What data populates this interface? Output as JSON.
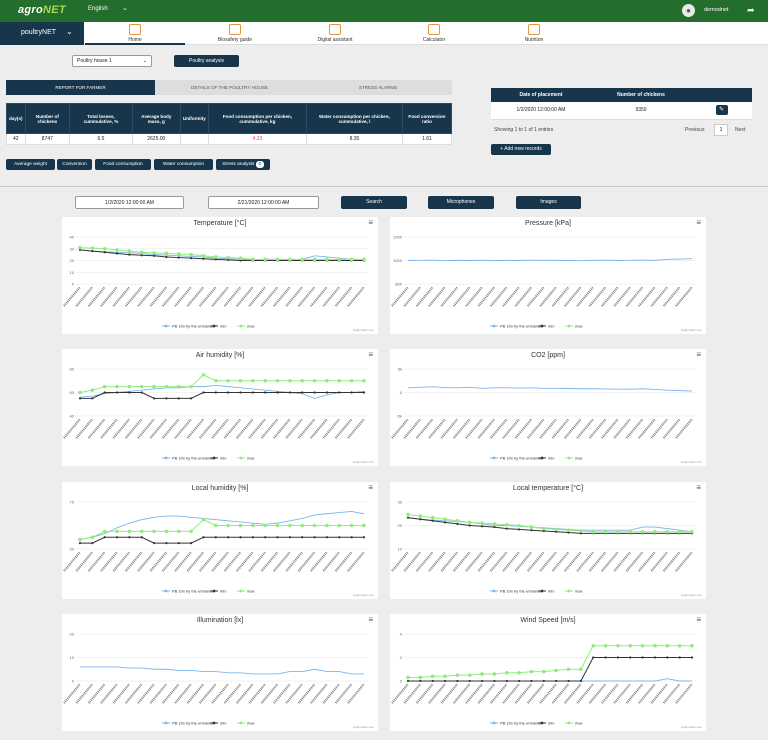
{
  "header": {
    "logo_main": "agro",
    "logo_accent": "NET",
    "language": "English",
    "user": "demodnet"
  },
  "app": {
    "name": "poultryNET"
  },
  "nav": [
    {
      "label": "Home",
      "icon": "home-icon",
      "active": true
    },
    {
      "label": "Biosafety guide",
      "icon": "shield-icon"
    },
    {
      "label": "Digital assistant",
      "icon": "assistant-icon"
    },
    {
      "label": "Calculator",
      "icon": "calculator-icon"
    },
    {
      "label": "Nutrition",
      "icon": "nutrition-icon"
    }
  ],
  "controls": {
    "house": "Poultry house 1",
    "analysis_button": "Poultry analysis"
  },
  "tabs": [
    "REPORT FOR FARMER",
    "DETAILS OF THE POULTRY HOUSE",
    "STRESS ALARMS"
  ],
  "report": {
    "headers": [
      "day(s)",
      "Number of chickens",
      "Total losses, cummulative, %",
      "Average body mass, g",
      "Uniformity",
      "Food consumption per chicken, cummulative, kg",
      "Water consumption per chicken, cummulative, l",
      "Food conversion ratio"
    ],
    "row": [
      "42",
      "8747",
      "6.5",
      "2625.00",
      "",
      "4.23",
      "8.35",
      "1.61"
    ]
  },
  "placement": {
    "headers": [
      "Date of placement",
      "Number of chickens"
    ],
    "row": [
      "1/2/2020 12:00:00 AM",
      "9350"
    ],
    "info": "Showing 1 to 1 of 1 entries",
    "prev": "Previous",
    "page": "1",
    "next": "Next",
    "add": "Add new records"
  },
  "filters": [
    "Average weight",
    "Conversion",
    "Food consumption",
    "Water consumption",
    "Stress analysis"
  ],
  "stress_count": "0",
  "search": {
    "from": "1/2/2020 12:00:00 AM",
    "to": "2/21/2020 12:00:00 AM",
    "search": "Search",
    "microphones": "Microphones",
    "images": "Images"
  },
  "legend": [
    "PB 10x by the entrance",
    "min",
    "max"
  ],
  "credit": "Highcharts.com",
  "colors": {
    "sensor": "#7cb5ec",
    "min": "#333333",
    "max": "#90ed7d"
  },
  "chart_data": [
    {
      "type": "line",
      "title": "Temperature [°C]",
      "ylim": [
        0,
        40
      ],
      "yticks": [
        "40",
        "30",
        "20",
        "10",
        "0"
      ],
      "series": [
        {
          "name": "PB 10x by the entrance",
          "values": [
            29,
            28,
            27.5,
            27,
            26.5,
            26,
            25,
            24.5,
            24,
            23.5,
            23,
            22,
            21.5,
            21,
            20.5,
            21,
            21,
            20.5,
            21,
            24,
            23,
            22,
            21,
            20
          ]
        },
        {
          "name": "min",
          "values": [
            29,
            28,
            27,
            26,
            25,
            24.5,
            24,
            23,
            22.5,
            22,
            21.5,
            21,
            20.5,
            20,
            20,
            20,
            20,
            20,
            20,
            20,
            20,
            20,
            20,
            20
          ]
        },
        {
          "name": "max",
          "values": [
            31,
            30.5,
            30,
            29,
            28,
            27,
            26.5,
            26,
            25.5,
            25,
            24,
            23,
            22.5,
            22,
            21,
            21,
            21,
            21,
            21,
            21,
            21,
            21,
            21,
            21
          ]
        }
      ]
    },
    {
      "type": "line",
      "title": "Pressure [kPa]",
      "ylim": [
        800,
        1200
      ],
      "yticks": [
        "1200",
        "1000",
        "800"
      ],
      "series": [
        {
          "name": "PB 10x by the entrance",
          "values": [
            1000,
            1002,
            1003,
            998,
            1001,
            1000,
            1002,
            999,
            1001,
            1000,
            1003,
            1002,
            1001,
            1000,
            998,
            1001,
            1003,
            1000,
            1002,
            1004,
            1001,
            1010,
            1012,
            1015
          ]
        }
      ]
    },
    {
      "type": "line",
      "title": "Air humidity [%]",
      "ylim": [
        40,
        80
      ],
      "yticks": [
        "80",
        "60",
        "40"
      ],
      "series": [
        {
          "name": "PB 10x by the entrance",
          "values": [
            56,
            57,
            59,
            60,
            61,
            62,
            63,
            64,
            64,
            65,
            65,
            66,
            65,
            64,
            63,
            62,
            61,
            60,
            59,
            55,
            58,
            60,
            60,
            61
          ]
        },
        {
          "name": "min",
          "values": [
            55,
            55,
            60,
            60,
            60,
            60,
            55,
            55,
            55,
            55,
            60,
            60,
            60,
            60,
            60,
            60,
            60,
            60,
            60,
            60,
            60,
            60,
            60,
            60
          ]
        },
        {
          "name": "max",
          "values": [
            60,
            62,
            65,
            65,
            65,
            65,
            65,
            65,
            65,
            65,
            75,
            70,
            70,
            70,
            70,
            70,
            70,
            70,
            70,
            70,
            70,
            70,
            70,
            70
          ]
        }
      ]
    },
    {
      "type": "line",
      "title": "CO2 [ppm]",
      "ylim": [
        -5000,
        5000
      ],
      "yticks": [
        "5k",
        "0",
        "-5k"
      ],
      "series": [
        {
          "name": "PB 10x by the entrance",
          "values": [
            1000,
            1100,
            1200,
            1050,
            1000,
            1100,
            900,
            1000,
            1000,
            950,
            1000,
            900,
            900,
            850,
            800,
            800,
            750,
            700,
            700,
            800,
            650,
            500,
            400,
            300
          ]
        }
      ]
    },
    {
      "type": "line",
      "title": "Local humidity [%]",
      "ylim": [
        50,
        90
      ],
      "yticks": [
        "75",
        "50"
      ],
      "series": [
        {
          "name": "PB 10x by the entrance",
          "values": [
            58,
            60,
            63,
            68,
            72,
            75,
            77,
            78,
            78,
            77,
            76,
            75,
            74,
            73,
            72,
            71,
            72,
            74,
            76,
            79,
            80,
            81,
            82,
            80
          ]
        },
        {
          "name": "min",
          "values": [
            55,
            55,
            60,
            60,
            60,
            60,
            55,
            55,
            55,
            55,
            60,
            60,
            60,
            60,
            60,
            60,
            60,
            60,
            60,
            60,
            60,
            60,
            60,
            60
          ]
        },
        {
          "name": "max",
          "values": [
            58,
            60,
            65,
            65,
            65,
            65,
            65,
            65,
            65,
            65,
            75,
            70,
            70,
            70,
            70,
            70,
            70,
            70,
            70,
            70,
            70,
            70,
            70,
            70
          ]
        }
      ]
    },
    {
      "type": "line",
      "title": "Local temperature [°C]",
      "ylim": [
        10,
        40
      ],
      "yticks": [
        "30",
        "20",
        "10"
      ],
      "series": [
        {
          "name": "PB 10x by the entrance",
          "values": [
            30,
            29,
            28.5,
            28,
            27.5,
            27,
            26,
            25,
            25,
            24.5,
            24,
            23.5,
            23,
            22.5,
            22,
            22,
            22,
            22,
            22,
            24,
            24,
            23,
            22,
            21
          ]
        },
        {
          "name": "min",
          "values": [
            30,
            29,
            28,
            27,
            26,
            25,
            24.5,
            24,
            23,
            22.5,
            22,
            21.5,
            21,
            20.5,
            20,
            20,
            20,
            20,
            20,
            20,
            20,
            20,
            20,
            20
          ]
        },
        {
          "name": "max",
          "values": [
            32,
            31,
            30,
            29,
            28,
            27,
            26.5,
            26,
            25.5,
            25,
            24,
            23,
            22.5,
            22,
            21.5,
            21,
            21,
            21,
            21,
            21,
            21,
            21,
            21,
            21
          ]
        }
      ]
    },
    {
      "type": "line",
      "title": "Illumination [lx]",
      "ylim": [
        0,
        20
      ],
      "yticks": [
        "20",
        "10",
        "0"
      ],
      "series": [
        {
          "name": "PB 10x by the entrance",
          "values": [
            6,
            6,
            6,
            6,
            5.5,
            5.5,
            5,
            5,
            4.5,
            4.5,
            4,
            4,
            3.5,
            3.5,
            3,
            3,
            3,
            4,
            4,
            5,
            4,
            4,
            3,
            3
          ]
        }
      ]
    },
    {
      "type": "line",
      "title": "Wind Speed [m/s]",
      "ylim": [
        0,
        4
      ],
      "yticks": [
        "4",
        "2",
        "0"
      ],
      "series": [
        {
          "name": "PB 10x by the entrance",
          "values": [
            0,
            0,
            0,
            0,
            0,
            0,
            0,
            0,
            0,
            0,
            0,
            0,
            0,
            0,
            0,
            0,
            0,
            0,
            0,
            0,
            0,
            0.2,
            0,
            0
          ]
        },
        {
          "name": "min",
          "values": [
            0,
            0,
            0,
            0,
            0,
            0,
            0,
            0,
            0,
            0,
            0,
            0,
            0,
            0,
            0,
            2,
            2,
            2,
            2,
            2,
            2,
            2,
            2,
            2
          ]
        },
        {
          "name": "max",
          "values": [
            0.3,
            0.3,
            0.4,
            0.4,
            0.5,
            0.5,
            0.6,
            0.6,
            0.7,
            0.7,
            0.8,
            0.8,
            0.9,
            1.0,
            1.0,
            3,
            3,
            3,
            3,
            3,
            3,
            3,
            3,
            3
          ]
        }
      ]
    }
  ]
}
